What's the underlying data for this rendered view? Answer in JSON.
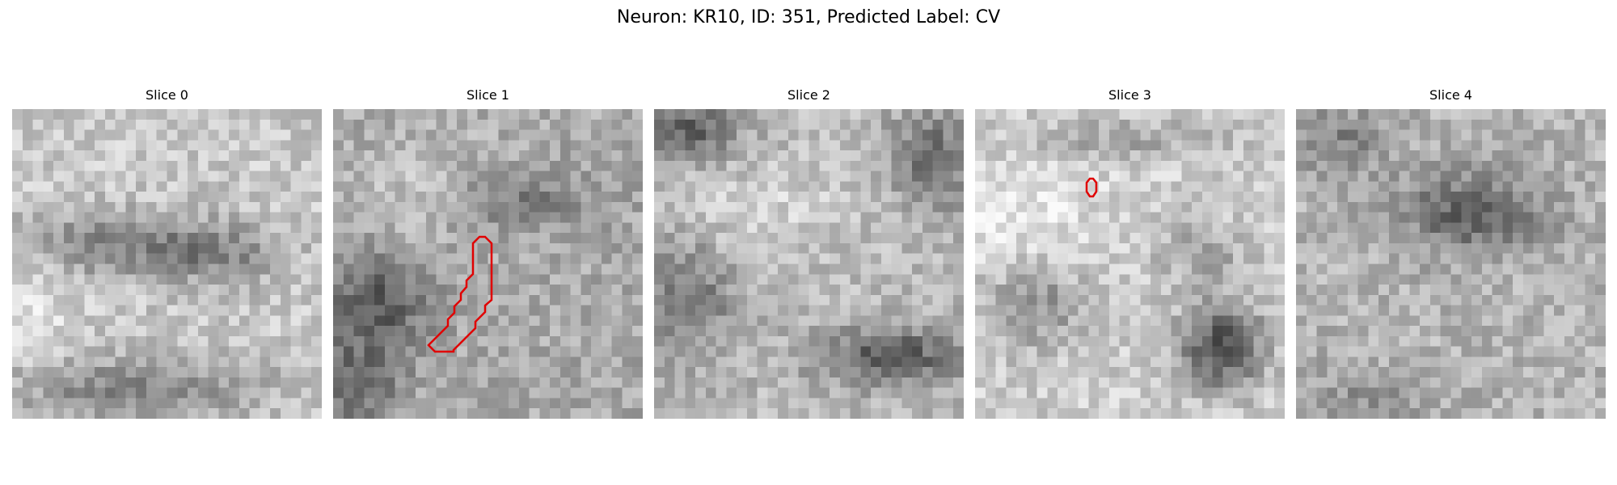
{
  "figure": {
    "title": "Neuron: KR10, ID: 351, Predicted Label: CV"
  },
  "colormap": "gray",
  "contour_color": "#e00000",
  "slices": [
    {
      "title": "Slice 0",
      "has_contour": false
    },
    {
      "title": "Slice 1",
      "has_contour": true
    },
    {
      "title": "Slice 2",
      "has_contour": false
    },
    {
      "title": "Slice 3",
      "has_contour": true
    },
    {
      "title": "Slice 4",
      "has_contour": false
    }
  ]
}
